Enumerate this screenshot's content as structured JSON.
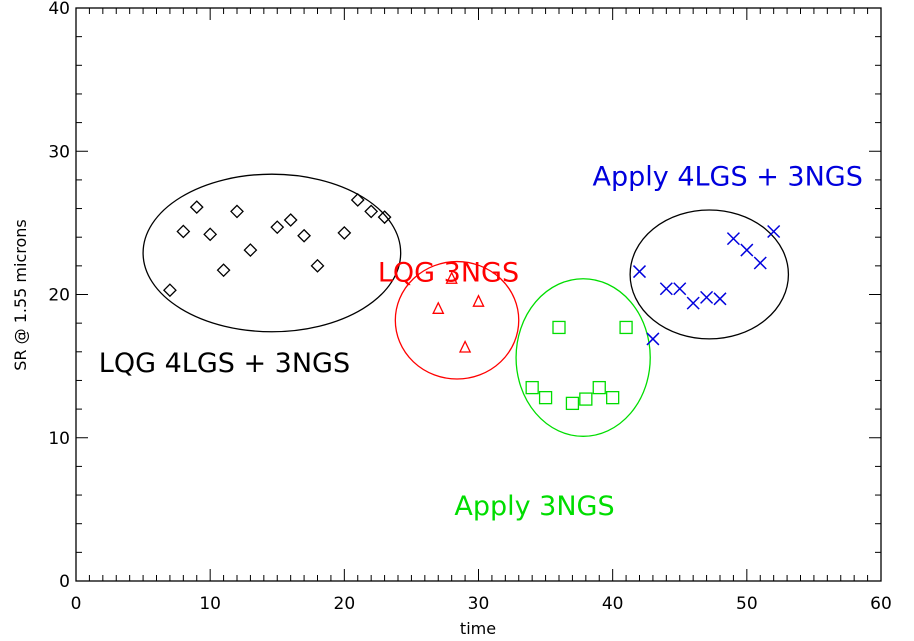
{
  "chart_data": {
    "type": "scatter",
    "title": "",
    "xlabel": "time",
    "ylabel": "SR @ 1.55 microns",
    "xlim": [
      0,
      60
    ],
    "ylim": [
      0,
      40
    ],
    "x_ticks": [
      0,
      10,
      20,
      30,
      40,
      50,
      60
    ],
    "y_ticks": [
      0,
      10,
      20,
      30,
      40
    ],
    "x_tick_labels": [
      "0",
      "10",
      "20",
      "30",
      "40",
      "50",
      "60"
    ],
    "y_tick_labels": [
      "0",
      "10",
      "20",
      "30",
      "40"
    ],
    "grid": false,
    "legend": "none",
    "series": [
      {
        "marker": "diamond",
        "color": "#000000",
        "x": [
          7,
          8,
          9,
          10,
          11,
          12,
          13,
          15,
          16,
          17,
          18,
          20,
          21,
          22,
          23
        ],
        "y": [
          20.3,
          24.4,
          26.1,
          24.2,
          21.7,
          25.8,
          23.1,
          24.7,
          25.2,
          24.1,
          22.0,
          24.3,
          26.6,
          25.8,
          25.4
        ]
      },
      {
        "marker": "triangle",
        "color": "#ff0000",
        "x": [
          27,
          28,
          29,
          30
        ],
        "y": [
          19.0,
          21.1,
          16.3,
          19.5
        ]
      },
      {
        "marker": "square",
        "color": "#00dd00",
        "x": [
          34,
          35,
          36,
          37,
          38,
          39,
          40,
          41
        ],
        "y": [
          13.5,
          12.8,
          17.7,
          12.4,
          12.7,
          13.5,
          12.8,
          17.7
        ]
      },
      {
        "marker": "x",
        "color": "#0000dd",
        "x": [
          42,
          43,
          44,
          45,
          46,
          47,
          48,
          49,
          50,
          51,
          52
        ],
        "y": [
          21.6,
          16.9,
          20.4,
          20.4,
          19.4,
          19.8,
          19.7,
          23.9,
          23.1,
          22.2,
          24.4
        ]
      }
    ],
    "ellipses": [
      {
        "cx": 14.6,
        "cy": 22.9,
        "rx": 9.6,
        "ry": 5.5,
        "color": "#000000"
      },
      {
        "cx": 28.4,
        "cy": 18.2,
        "rx": 4.6,
        "ry": 4.1,
        "color": "#ff0000"
      },
      {
        "cx": 37.8,
        "cy": 15.6,
        "rx": 5.0,
        "ry": 5.5,
        "color": "#00dd00"
      },
      {
        "cx": 47.2,
        "cy": 21.4,
        "rx": 5.9,
        "ry": 4.5,
        "color": "#000000"
      }
    ],
    "annotations": [
      {
        "text": "LQG 4LGS + 3NGS",
        "x": 1.7,
        "y": 14.6,
        "color": "#000000"
      },
      {
        "text": "LQG  3NGS",
        "x": 22.5,
        "y": 20.9,
        "color": "#ff0000"
      },
      {
        "text": "Apply 3NGS",
        "x": 28.2,
        "y": 4.6,
        "color": "#00dd00"
      },
      {
        "text": "Apply 4LGS + 3NGS",
        "x": 38.5,
        "y": 27.6,
        "color": "#0000dd"
      }
    ]
  }
}
